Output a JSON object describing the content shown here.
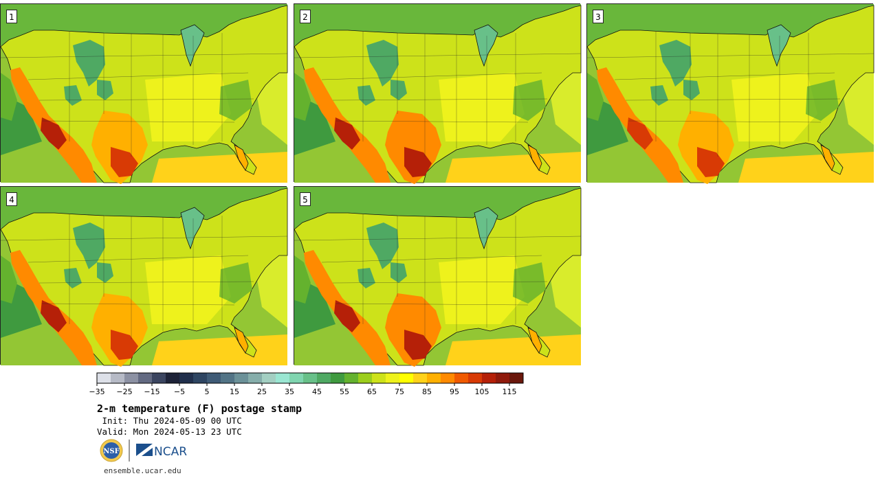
{
  "title": "2-m temperature (F) postage stamp",
  "init_line": " Init: Thu 2024-05-09 00 UTC",
  "valid_line": "Valid: Mon 2024-05-13 23 UTC",
  "url": "ensemble.ucar.edu",
  "logos": {
    "nsf": "NSF",
    "ncar": "NCAR"
  },
  "panels": [
    {
      "label": "1",
      "hot_shift": 0
    },
    {
      "label": "2",
      "hot_shift": 1
    },
    {
      "label": "3",
      "hot_shift": -1
    },
    {
      "label": "4",
      "hot_shift": 0
    },
    {
      "label": "5",
      "hot_shift": 1
    }
  ],
  "colorbar": {
    "colors": [
      "#dde0e8",
      "#b6bac6",
      "#8c91a3",
      "#636a82",
      "#3b4560",
      "#1d2338",
      "#202f4c",
      "#2e4562",
      "#3f5b76",
      "#527486",
      "#6b9198",
      "#86aeab",
      "#a3cfc2",
      "#9ae6d2",
      "#80d5b0",
      "#68c089",
      "#4fa963",
      "#3f9a3f",
      "#64b22e",
      "#9cce1c",
      "#cde21a",
      "#eef21c",
      "#ffff00",
      "#ffd21a",
      "#ffb000",
      "#ff8a00",
      "#f05a00",
      "#d83a05",
      "#b52008",
      "#8f1a0c",
      "#6a170c"
    ],
    "tick_labels": [
      "−35",
      "−25",
      "−15",
      "−5",
      "5",
      "15",
      "25",
      "35",
      "45",
      "55",
      "65",
      "75",
      "85",
      "95",
      "105",
      "115"
    ]
  }
}
